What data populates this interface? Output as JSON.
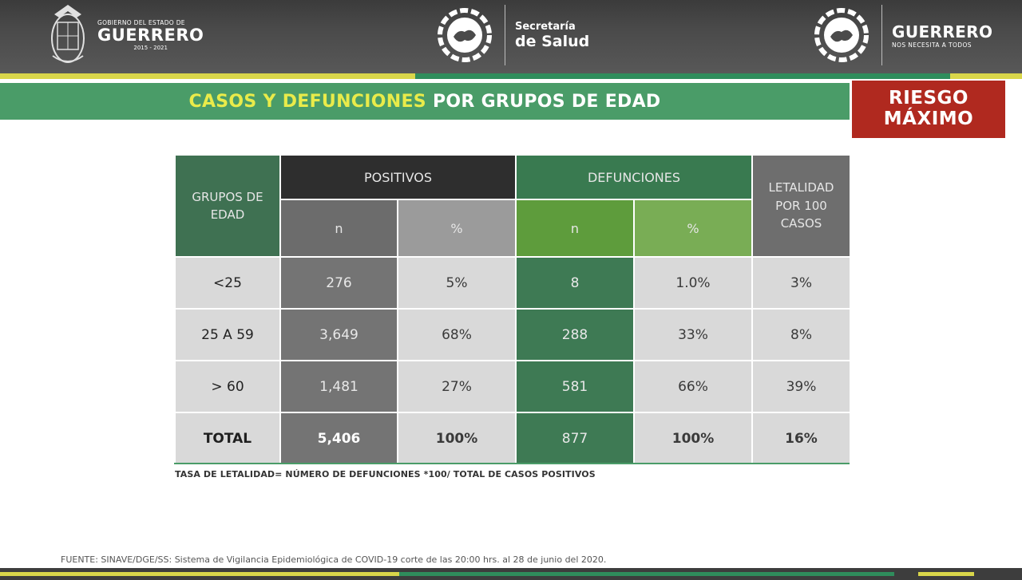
{
  "header": {
    "gobierno_small": "GOBIERNO DEL ESTADO DE",
    "gobierno_big": "GUERRERO",
    "gobierno_years": "2015 - 2021",
    "secretaria_line1": "Secretaría",
    "secretaria_line2": "de Salud",
    "guerrero_big": "GUERRERO",
    "guerrero_slogan": "NOS NECESITA A TODOS"
  },
  "title": {
    "highlight": "CASOS Y DEFUNCIONES",
    "rest": "POR GRUPOS DE EDAD"
  },
  "risk_badge": {
    "line1": "RIESGO",
    "line2": "MÁXIMO",
    "color": "#b0291f"
  },
  "table": {
    "headers": {
      "grupos_line1": "GRUPOS DE",
      "grupos_line2": "EDAD",
      "positivos": "POSITIVOS",
      "defunciones": "DEFUNCIONES",
      "letalidad_line1": "LETALIDAD",
      "letalidad_line2": "POR 100",
      "letalidad_line3": "CASOS",
      "n": "n",
      "pct": "%"
    },
    "rows": [
      {
        "grupo": "<25",
        "pos_n": "276",
        "pos_pct": "5%",
        "def_n": "8",
        "def_pct": "1.0%",
        "letalidad": "3%"
      },
      {
        "grupo": "25 A 59",
        "pos_n": "3,649",
        "pos_pct": "68%",
        "def_n": "288",
        "def_pct": "33%",
        "letalidad": "8%"
      },
      {
        "grupo": "> 60",
        "pos_n": "1,481",
        "pos_pct": "27%",
        "def_n": "581",
        "def_pct": "66%",
        "letalidad": "39%"
      }
    ],
    "total": {
      "grupo": "TOTAL",
      "pos_n": "5,406",
      "pos_pct": "100%",
      "def_n": "877",
      "def_pct": "100%",
      "letalidad": "16%"
    }
  },
  "note": "TASA DE LETALIDAD= NÚMERO DE DEFUNCIONES *100/ TOTAL DE CASOS POSITIVOS",
  "source": "FUENTE: SINAVE/DGE/SS: Sistema de Vigilancia Epidemiológica de COVID-19 corte de las 20:00 hrs. al 28 de junio del 2020.",
  "icons": [
    "guerrero-crest-icon",
    "secretaria-emblem-icon",
    "guerrero-emblem-icon"
  ]
}
